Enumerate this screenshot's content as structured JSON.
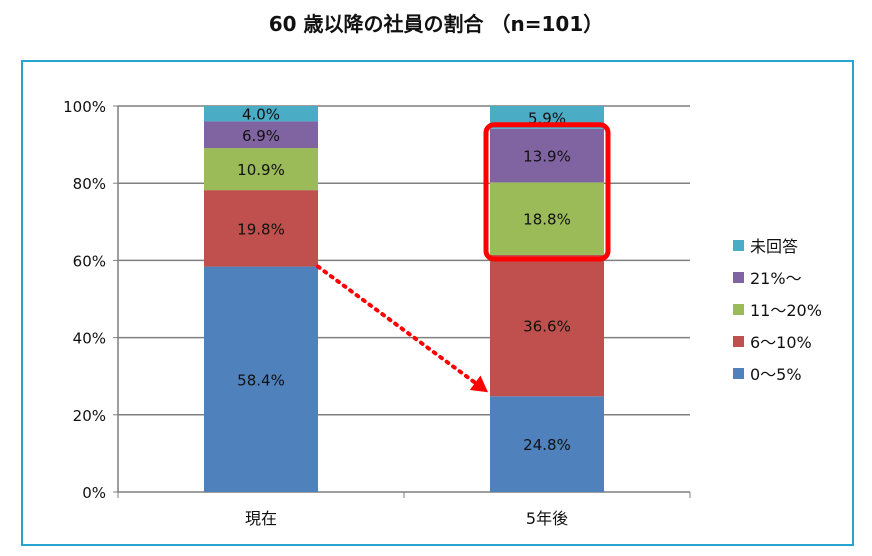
{
  "title": "60 歳以降の社員の割合 （n=101）",
  "chart_data": {
    "type": "bar",
    "stacked": true,
    "categories": [
      "現在",
      "5年後"
    ],
    "ylim": [
      0,
      100
    ],
    "yticks": [
      "0%",
      "20%",
      "40%",
      "60%",
      "80%",
      "100%"
    ],
    "grid": true,
    "legend_position": "right",
    "series": [
      {
        "name": "0～5%",
        "color": "#4f81bd",
        "values": [
          58.4,
          24.8
        ],
        "labels": [
          "58.4%",
          "24.8%"
        ]
      },
      {
        "name": "6～10%",
        "color": "#c0504d",
        "values": [
          19.8,
          36.6
        ],
        "labels": [
          "19.8%",
          "36.6%"
        ]
      },
      {
        "name": "11～20%",
        "color": "#9bbb59",
        "values": [
          10.9,
          18.8
        ],
        "labels": [
          "10.9%",
          "18.8%"
        ]
      },
      {
        "name": "21%～",
        "color": "#8064a2",
        "values": [
          6.9,
          13.9
        ],
        "labels": [
          "6.9%",
          "13.9%"
        ]
      },
      {
        "name": "未回答",
        "color": "#4bacc6",
        "values": [
          4.0,
          5.9
        ],
        "labels": [
          "4.0%",
          "5.9%"
        ]
      }
    ],
    "highlight": {
      "category_index": 1,
      "series_indices": [
        2,
        3
      ],
      "color": "#ff0000"
    },
    "arrow": {
      "from_category": 0,
      "to_category": 1,
      "color": "#ff0000",
      "style": "dotted"
    }
  }
}
